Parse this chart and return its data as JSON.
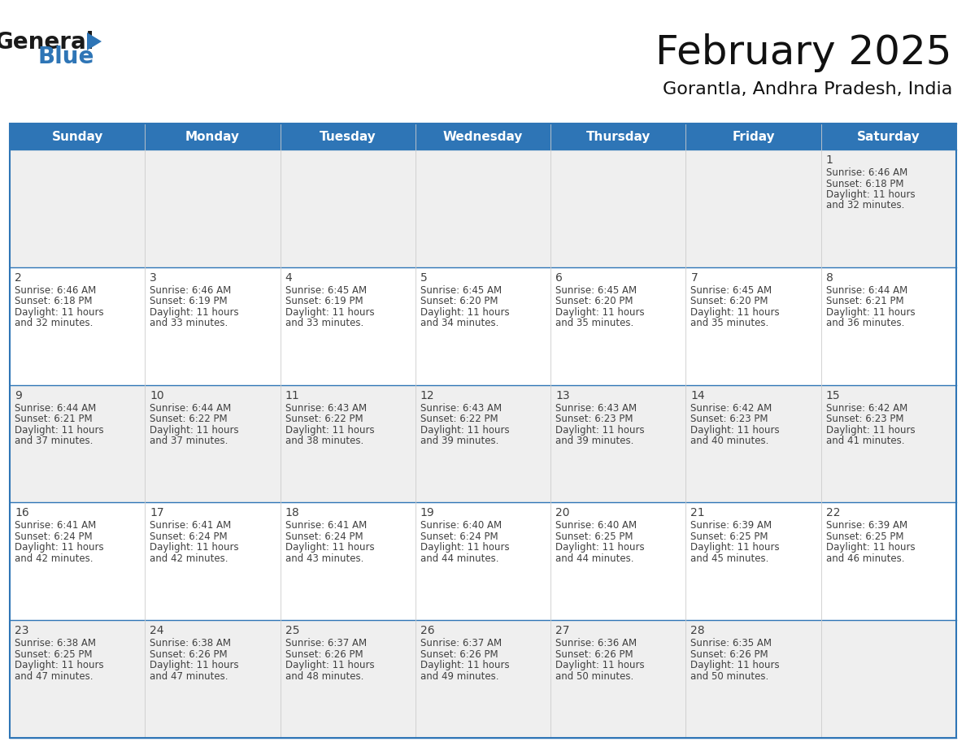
{
  "title": "February 2025",
  "subtitle": "Gorantla, Andhra Pradesh, India",
  "header_bg": "#2E75B6",
  "header_text_color": "#FFFFFF",
  "cell_bg_light": "#EFEFEF",
  "cell_bg_white": "#FFFFFF",
  "row_bg": [
    "#EFEFEF",
    "#FFFFFF",
    "#EFEFEF",
    "#FFFFFF",
    "#EFEFEF"
  ],
  "border_color": "#2E75B6",
  "grid_color": "#2E75B6",
  "text_color": "#404040",
  "day_number_color": "#404040",
  "days_of_week": [
    "Sunday",
    "Monday",
    "Tuesday",
    "Wednesday",
    "Thursday",
    "Friday",
    "Saturday"
  ],
  "calendar": [
    [
      null,
      null,
      null,
      null,
      null,
      null,
      1
    ],
    [
      2,
      3,
      4,
      5,
      6,
      7,
      8
    ],
    [
      9,
      10,
      11,
      12,
      13,
      14,
      15
    ],
    [
      16,
      17,
      18,
      19,
      20,
      21,
      22
    ],
    [
      23,
      24,
      25,
      26,
      27,
      28,
      null
    ]
  ],
  "cell_data": {
    "1": {
      "sunrise": "6:46 AM",
      "sunset": "6:18 PM",
      "daylight": "11 hours",
      "daylight2": "and 32 minutes."
    },
    "2": {
      "sunrise": "6:46 AM",
      "sunset": "6:18 PM",
      "daylight": "11 hours",
      "daylight2": "and 32 minutes."
    },
    "3": {
      "sunrise": "6:46 AM",
      "sunset": "6:19 PM",
      "daylight": "11 hours",
      "daylight2": "and 33 minutes."
    },
    "4": {
      "sunrise": "6:45 AM",
      "sunset": "6:19 PM",
      "daylight": "11 hours",
      "daylight2": "and 33 minutes."
    },
    "5": {
      "sunrise": "6:45 AM",
      "sunset": "6:20 PM",
      "daylight": "11 hours",
      "daylight2": "and 34 minutes."
    },
    "6": {
      "sunrise": "6:45 AM",
      "sunset": "6:20 PM",
      "daylight": "11 hours",
      "daylight2": "and 35 minutes."
    },
    "7": {
      "sunrise": "6:45 AM",
      "sunset": "6:20 PM",
      "daylight": "11 hours",
      "daylight2": "and 35 minutes."
    },
    "8": {
      "sunrise": "6:44 AM",
      "sunset": "6:21 PM",
      "daylight": "11 hours",
      "daylight2": "and 36 minutes."
    },
    "9": {
      "sunrise": "6:44 AM",
      "sunset": "6:21 PM",
      "daylight": "11 hours",
      "daylight2": "and 37 minutes."
    },
    "10": {
      "sunrise": "6:44 AM",
      "sunset": "6:22 PM",
      "daylight": "11 hours",
      "daylight2": "and 37 minutes."
    },
    "11": {
      "sunrise": "6:43 AM",
      "sunset": "6:22 PM",
      "daylight": "11 hours",
      "daylight2": "and 38 minutes."
    },
    "12": {
      "sunrise": "6:43 AM",
      "sunset": "6:22 PM",
      "daylight": "11 hours",
      "daylight2": "and 39 minutes."
    },
    "13": {
      "sunrise": "6:43 AM",
      "sunset": "6:23 PM",
      "daylight": "11 hours",
      "daylight2": "and 39 minutes."
    },
    "14": {
      "sunrise": "6:42 AM",
      "sunset": "6:23 PM",
      "daylight": "11 hours",
      "daylight2": "and 40 minutes."
    },
    "15": {
      "sunrise": "6:42 AM",
      "sunset": "6:23 PM",
      "daylight": "11 hours",
      "daylight2": "and 41 minutes."
    },
    "16": {
      "sunrise": "6:41 AM",
      "sunset": "6:24 PM",
      "daylight": "11 hours",
      "daylight2": "and 42 minutes."
    },
    "17": {
      "sunrise": "6:41 AM",
      "sunset": "6:24 PM",
      "daylight": "11 hours",
      "daylight2": "and 42 minutes."
    },
    "18": {
      "sunrise": "6:41 AM",
      "sunset": "6:24 PM",
      "daylight": "11 hours",
      "daylight2": "and 43 minutes."
    },
    "19": {
      "sunrise": "6:40 AM",
      "sunset": "6:24 PM",
      "daylight": "11 hours",
      "daylight2": "and 44 minutes."
    },
    "20": {
      "sunrise": "6:40 AM",
      "sunset": "6:25 PM",
      "daylight": "11 hours",
      "daylight2": "and 44 minutes."
    },
    "21": {
      "sunrise": "6:39 AM",
      "sunset": "6:25 PM",
      "daylight": "11 hours",
      "daylight2": "and 45 minutes."
    },
    "22": {
      "sunrise": "6:39 AM",
      "sunset": "6:25 PM",
      "daylight": "11 hours",
      "daylight2": "and 46 minutes."
    },
    "23": {
      "sunrise": "6:38 AM",
      "sunset": "6:25 PM",
      "daylight": "11 hours",
      "daylight2": "and 47 minutes."
    },
    "24": {
      "sunrise": "6:38 AM",
      "sunset": "6:26 PM",
      "daylight": "11 hours",
      "daylight2": "and 47 minutes."
    },
    "25": {
      "sunrise": "6:37 AM",
      "sunset": "6:26 PM",
      "daylight": "11 hours",
      "daylight2": "and 48 minutes."
    },
    "26": {
      "sunrise": "6:37 AM",
      "sunset": "6:26 PM",
      "daylight": "11 hours",
      "daylight2": "and 49 minutes."
    },
    "27": {
      "sunrise": "6:36 AM",
      "sunset": "6:26 PM",
      "daylight": "11 hours",
      "daylight2": "and 50 minutes."
    },
    "28": {
      "sunrise": "6:35 AM",
      "sunset": "6:26 PM",
      "daylight": "11 hours",
      "daylight2": "and 50 minutes."
    }
  },
  "logo_text1": "General",
  "logo_text2": "Blue",
  "logo_color1": "#1a1a1a",
  "logo_color2": "#2E75B6",
  "logo_triangle_color": "#2E75B6",
  "title_fontsize": 36,
  "subtitle_fontsize": 16,
  "header_fontsize": 11,
  "day_num_fontsize": 10,
  "cell_text_fontsize": 8.5
}
